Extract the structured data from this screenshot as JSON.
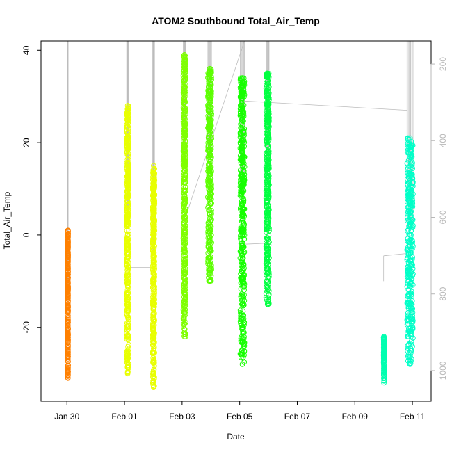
{
  "chart_data": {
    "type": "scatter",
    "title": "ATOM2 Southbound Total_Air_Temp",
    "xlabel": "Date",
    "ylabel": "Total_Air_Temp",
    "x_unit": "day",
    "xlim": [
      "2016-01-29 02:24",
      "2016-02-11 15:36"
    ],
    "ylim": [
      -36,
      42
    ],
    "y_ticks": [
      -20,
      0,
      20,
      40
    ],
    "x_ticks": [
      "Jan 30",
      "Feb 01",
      "Feb 03",
      "Feb 05",
      "Feb 07",
      "Feb 09",
      "Feb 11"
    ],
    "y2_axis": {
      "color": "#b8b8b8",
      "ticks": [
        200,
        400,
        600,
        800,
        1000
      ],
      "lim": [
        1080,
        140
      ],
      "inverted": true
    },
    "grid": false,
    "legend": "none",
    "point_marker": "open-circle",
    "series": [
      {
        "color": "#ff8000",
        "x": "2016-01-30 00:42",
        "x_end": "2016-01-30 01:00",
        "y_range": [
          -31,
          1
        ]
      },
      {
        "color": "#e8ff00",
        "x": "2016-02-01 01:48",
        "x_end": "2016-02-01 03:30",
        "y_range": [
          -30,
          28
        ]
      },
      {
        "color": "#e8ff00",
        "x": "2016-02-01 23:30",
        "x_end": "2016-02-02 01:00",
        "y_range": [
          -33,
          15
        ]
      },
      {
        "color": "#7fff00",
        "x": "2016-02-03 01:00",
        "x_end": "2016-02-03 03:00",
        "y_range": [
          -22,
          39
        ]
      },
      {
        "color": "#5cff00",
        "x": "2016-02-03 21:30",
        "x_end": "2016-02-04 00:30",
        "y_range": [
          -10,
          36
        ]
      },
      {
        "color": "#16ff00",
        "x": "2016-02-05 00:30",
        "x_end": "2016-02-05 04:00",
        "y_range": [
          -28,
          34
        ]
      },
      {
        "color": "#00ff40",
        "x": "2016-02-05 22:00",
        "x_end": "2016-02-06 00:30",
        "y_range": [
          -15,
          35
        ]
      },
      {
        "color": "#00ffb0",
        "x": "2016-02-10 00:00",
        "x_end": "2016-02-10 00:30",
        "y_range": [
          -32,
          -22
        ]
      },
      {
        "color": "#00ffc8",
        "x": "2016-02-10 19:30",
        "x_end": "2016-02-11 00:30",
        "y_range": [
          -28,
          21
        ]
      }
    ],
    "altitude_trace_color": "#bcbcbc"
  }
}
